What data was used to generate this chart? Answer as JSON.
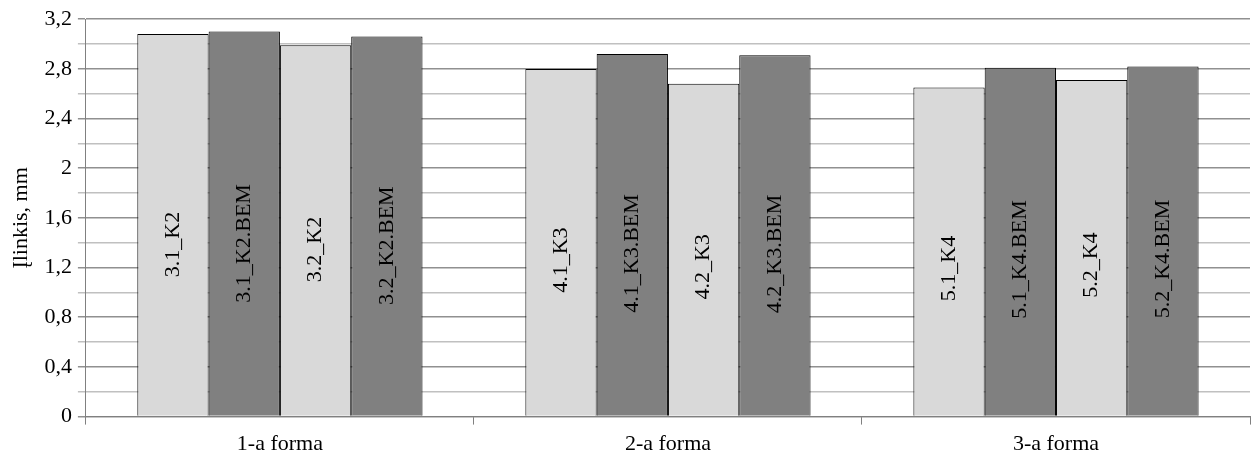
{
  "chart_data": {
    "type": "bar",
    "ylabel": "Įlinkis, mm",
    "categories": [
      "1-a forma",
      "2-a forma",
      "3-a forma"
    ],
    "series": [
      {
        "color": "#d9d9d9",
        "values": [
          3.08,
          2.8,
          2.65
        ]
      },
      {
        "color": "#808080",
        "values": [
          3.1,
          2.92,
          2.81
        ]
      },
      {
        "color": "#d9d9d9",
        "values": [
          2.99,
          2.68,
          2.71
        ]
      },
      {
        "color": "#808080",
        "values": [
          3.06,
          2.91,
          2.82
        ]
      }
    ],
    "annotations": [
      "3.1_K2",
      "3.1_K2.BEM",
      "3.2_K2",
      "3.2_K2.BEM",
      "4.1_K3",
      "4.1_K3.BEM",
      "4.2_K3",
      "4.2_K3.BEM",
      "5.1_K4",
      "5.1_K4.BEM",
      "5.2_K4",
      "5.2_K4.BEM"
    ],
    "ylim": [
      0,
      3.2
    ],
    "yticks": [
      0,
      {
        "value": 0.2,
        "label": null
      },
      {
        "value": 0.4,
        "label": "0,4"
      },
      {
        "value": 0.6,
        "label": null
      },
      {
        "value": 0.8,
        "label": "0,8"
      },
      {
        "value": 1.0,
        "label": null
      },
      {
        "value": 1.2,
        "label": "1,2"
      },
      {
        "value": 1.4,
        "label": null
      },
      {
        "value": 1.6,
        "label": "1,6"
      },
      {
        "value": 1.8,
        "label": null
      },
      2,
      {
        "value": 2.2,
        "label": null
      },
      {
        "value": 2.4,
        "label": "2,4"
      },
      {
        "value": 2.6,
        "label": null
      },
      {
        "value": 2.8,
        "label": "2,8"
      },
      {
        "value": 3.0,
        "label": null
      },
      {
        "value": 3.2,
        "label": "3,2"
      }
    ],
    "grid": "y",
    "legend": false
  }
}
